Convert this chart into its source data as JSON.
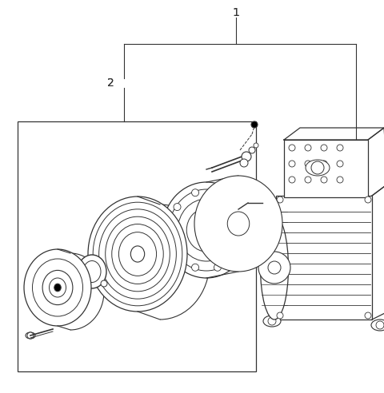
{
  "background_color": "#ffffff",
  "line_color": "#333333",
  "fig_width": 4.8,
  "fig_height": 4.92,
  "dpi": 100,
  "label_1": "1",
  "label_2": "2"
}
